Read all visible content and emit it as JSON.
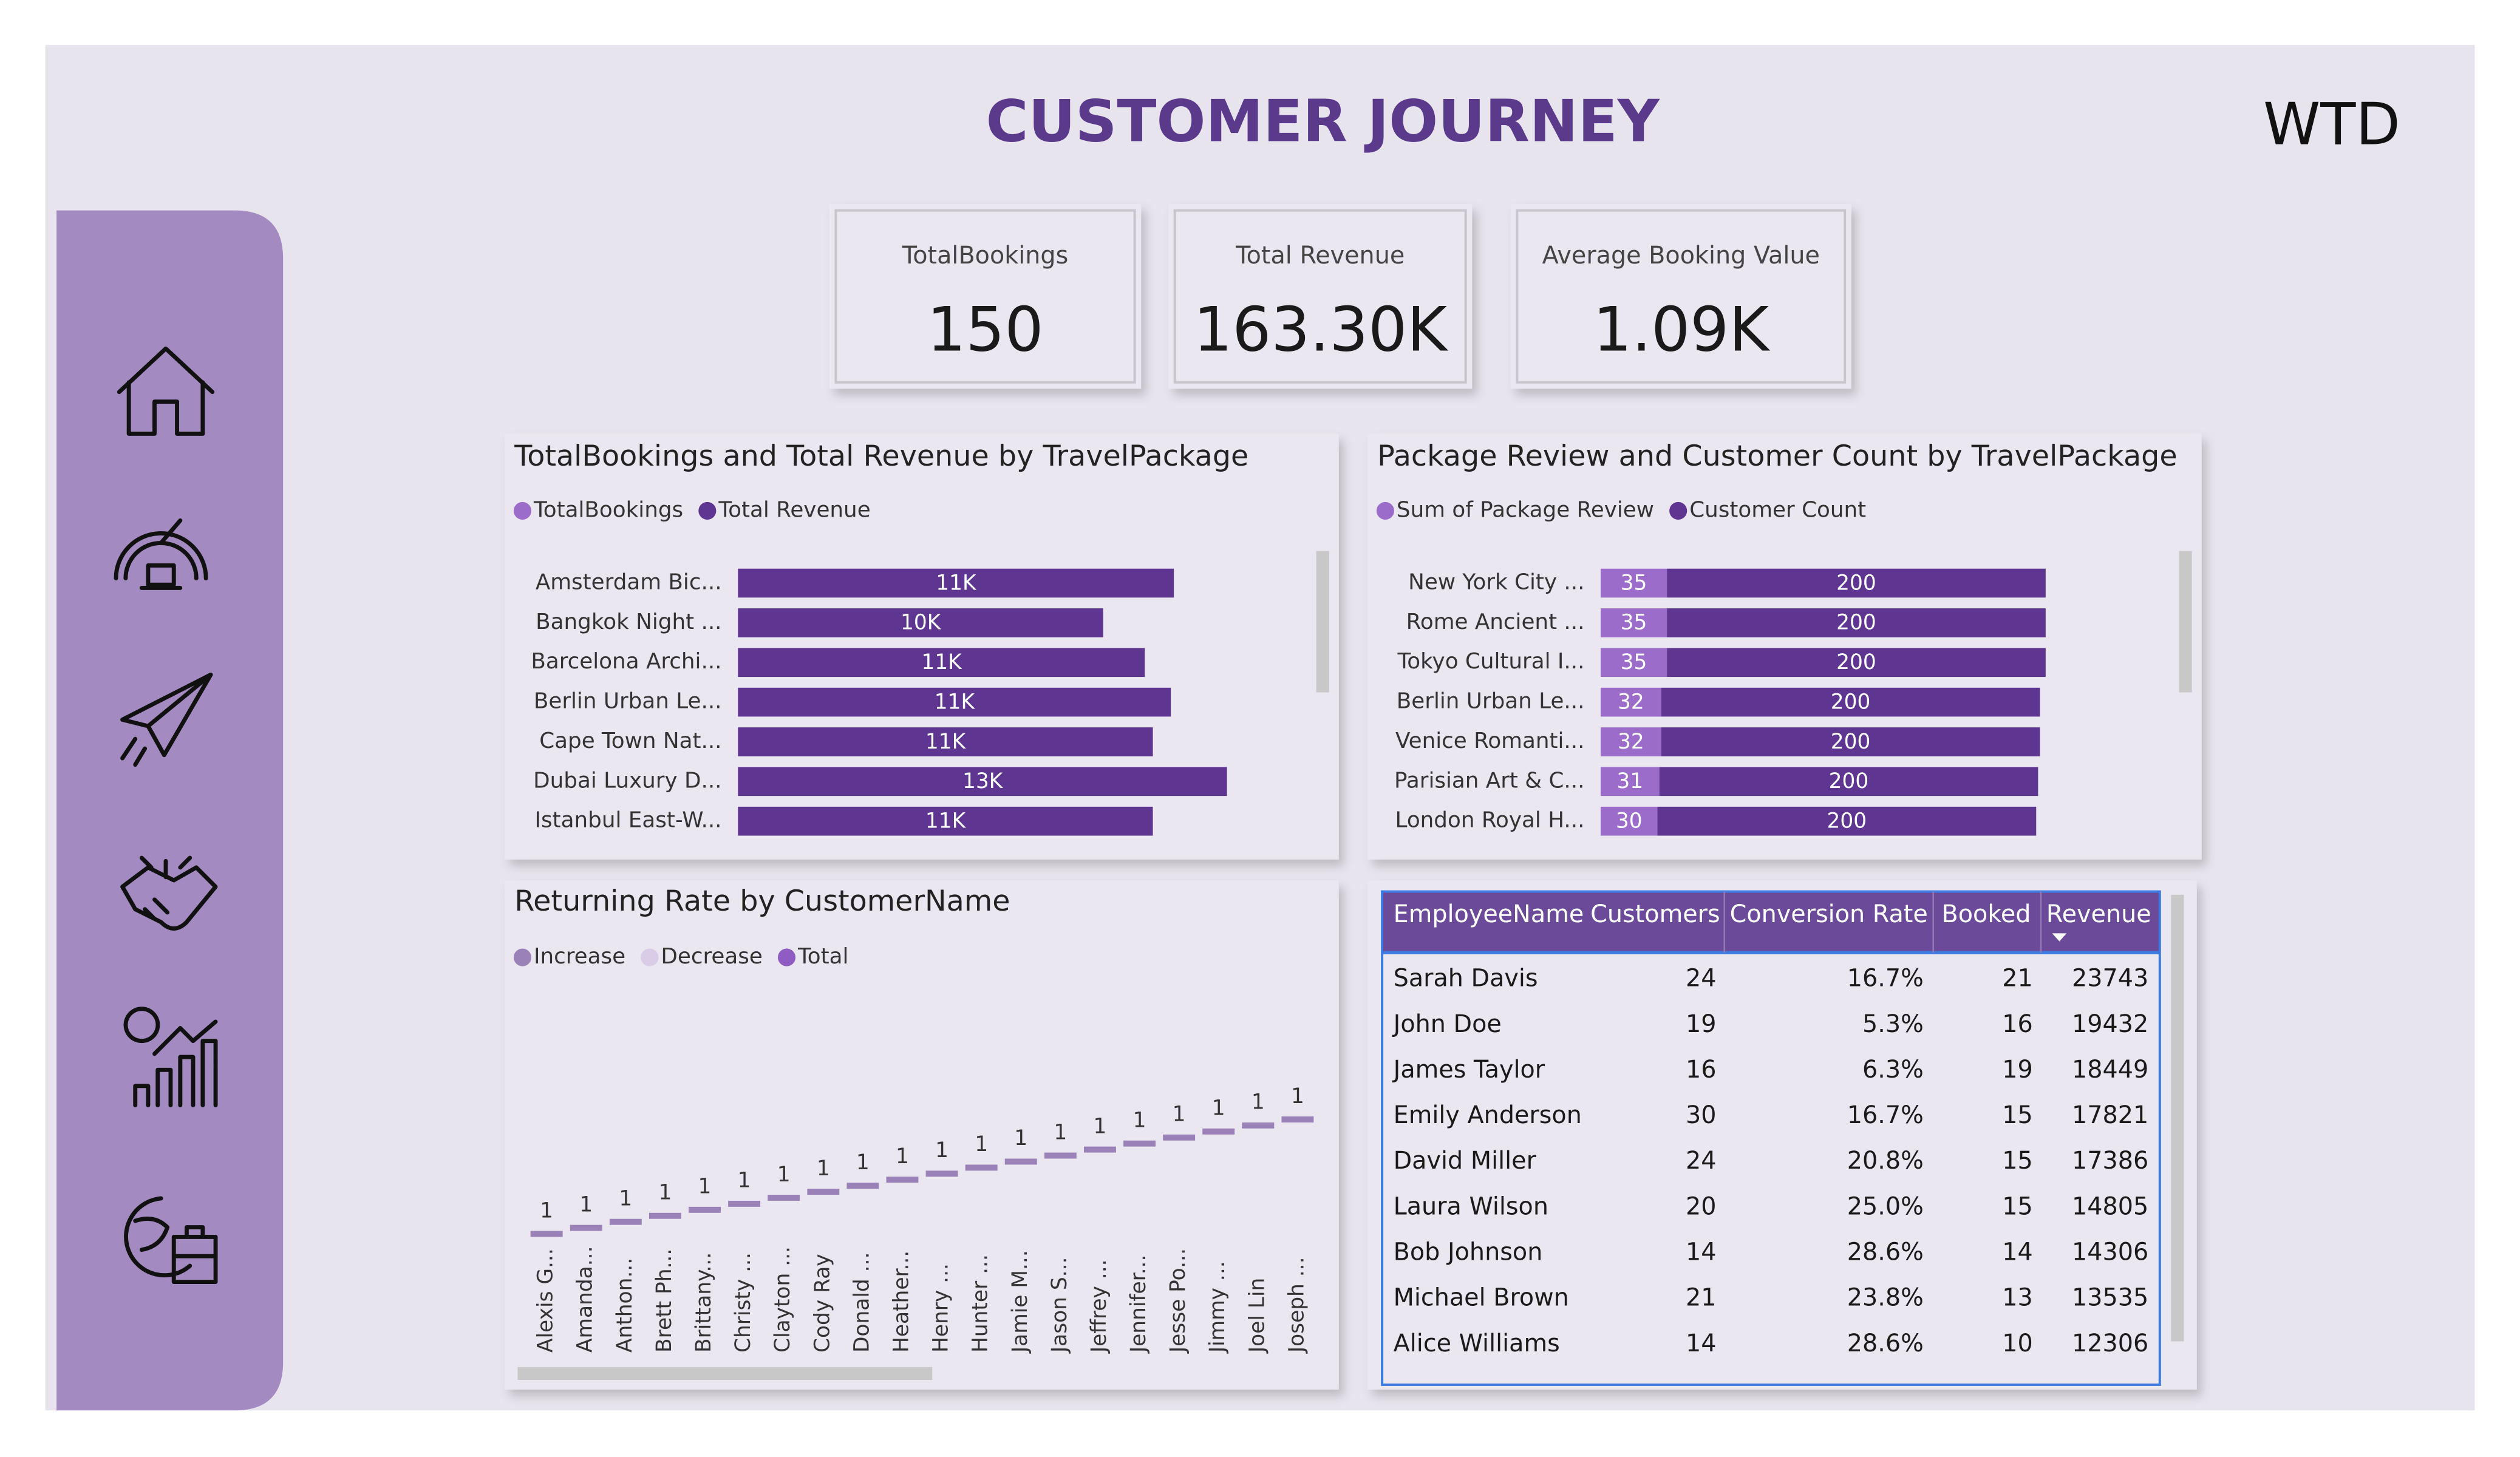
{
  "header": {
    "title": "CUSTOMER JOURNEY",
    "logo": "WTD"
  },
  "kpis": [
    {
      "label": "TotalBookings",
      "value": "150"
    },
    {
      "label": "Total Revenue",
      "value": "163.30K"
    },
    {
      "label": "Average Booking Value",
      "value": "1.09K"
    }
  ],
  "chart_data": [
    {
      "type": "bar",
      "orientation": "horizontal",
      "stacked": true,
      "title": "TotalBookings and Total Revenue by TravelPackage",
      "categories": [
        "Amsterdam Bic...",
        "Bangkok Night ...",
        "Barcelona Archi...",
        "Berlin Urban Le...",
        "Cape Town Nat...",
        "Dubai Luxury D...",
        "Istanbul East-W..."
      ],
      "series": [
        {
          "name": "TotalBookings",
          "color": "#9b6cc9",
          "values": [
            10,
            10,
            10,
            10,
            10,
            10,
            10
          ]
        },
        {
          "name": "Total Revenue",
          "color": "#5f3592",
          "values": [
            11400,
            9550,
            10640,
            11320,
            10850,
            12790,
            10850
          ],
          "value_labels": [
            "11K",
            "10K",
            "11K",
            "11K",
            "11K",
            "13K",
            "11K"
          ]
        }
      ],
      "xlim": [
        0,
        14000
      ]
    },
    {
      "type": "bar",
      "orientation": "horizontal",
      "stacked": true,
      "title": "Package Review and Customer Count by TravelPackage",
      "categories": [
        "New York City ...",
        "Rome Ancient ...",
        "Tokyo Cultural I...",
        "Berlin Urban Le...",
        "Venice Romanti...",
        "Parisian Art & C...",
        "London Royal H..."
      ],
      "series": [
        {
          "name": "Sum of Package Review",
          "color": "#9b6cc9",
          "values": [
            35,
            35,
            35,
            32,
            32,
            31,
            30
          ]
        },
        {
          "name": "Customer Count",
          "color": "#5f3592",
          "values": [
            200,
            200,
            200,
            200,
            200,
            200,
            200
          ]
        }
      ],
      "xlim": [
        0,
        280
      ]
    },
    {
      "type": "waterfall",
      "title": "Returning Rate by CustomerName",
      "legend": [
        {
          "name": "Increase",
          "color": "#9a82b8"
        },
        {
          "name": "Decrease",
          "color": "#d9cce6"
        },
        {
          "name": "Total",
          "color": "#8e5cc2"
        }
      ],
      "categories": [
        "Alexis G...",
        "Amanda...",
        "Anthon...",
        "Brett Ph...",
        "Brittany...",
        "Christy ...",
        "Clayton ...",
        "Cody Ray",
        "Donald ...",
        "Heather...",
        "Henry ...",
        "Hunter ...",
        "Jamie M...",
        "Jason S...",
        "Jeffrey ...",
        "Jennifer...",
        "Jesse Po...",
        "Jimmy ...",
        "Joel Lin",
        "Joseph ..."
      ],
      "values": [
        1,
        1,
        1,
        1,
        1,
        1,
        1,
        1,
        1,
        1,
        1,
        1,
        1,
        1,
        1,
        1,
        1,
        1,
        1,
        1
      ],
      "ylim": [
        0,
        24
      ]
    }
  ],
  "table": {
    "columns": [
      "EmployeeName",
      "Customers",
      "Conversion Rate",
      "Booked",
      "Revenue"
    ],
    "rows": [
      [
        "Sarah Davis",
        24,
        "16.7%",
        21,
        23743
      ],
      [
        "John Doe",
        19,
        "5.3%",
        16,
        19432
      ],
      [
        "James Taylor",
        16,
        "6.3%",
        19,
        18449
      ],
      [
        "Emily Anderson",
        30,
        "16.7%",
        15,
        17821
      ],
      [
        "David Miller",
        24,
        "20.8%",
        15,
        17386
      ],
      [
        "Laura Wilson",
        20,
        "25.0%",
        15,
        14805
      ],
      [
        "Bob Johnson",
        14,
        "28.6%",
        14,
        14306
      ],
      [
        "Michael Brown",
        21,
        "23.8%",
        13,
        13535
      ],
      [
        "Alice Williams",
        14,
        "28.6%",
        10,
        12306
      ]
    ]
  }
}
